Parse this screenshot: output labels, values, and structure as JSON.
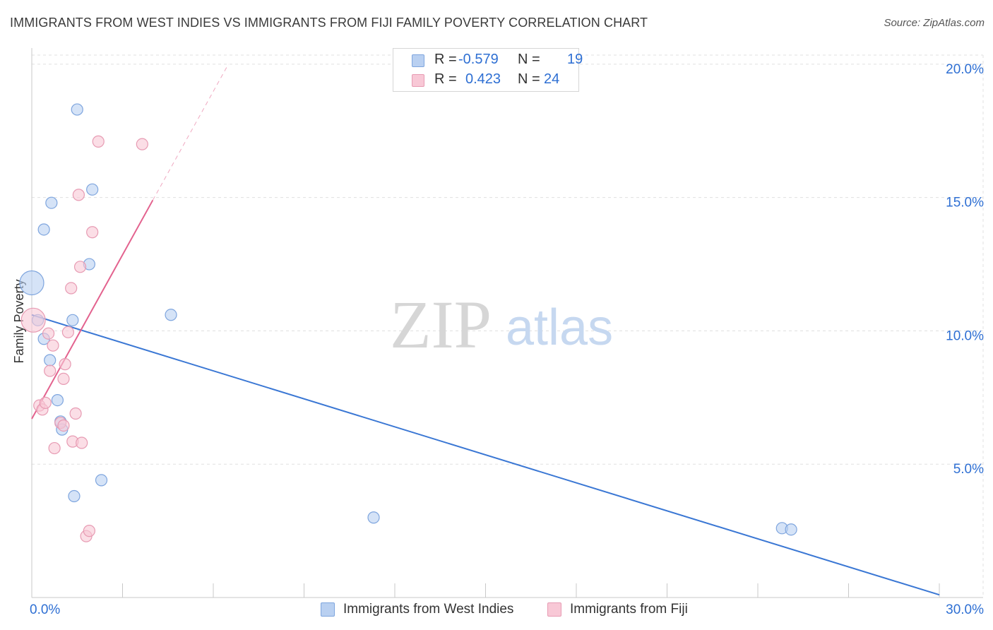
{
  "title": "IMMIGRANTS FROM WEST INDIES VS IMMIGRANTS FROM FIJI FAMILY POVERTY CORRELATION CHART",
  "source": "Source: ZipAtlas.com",
  "watermark": {
    "zip": "ZIP",
    "atlas": "atlas"
  },
  "stats": {
    "r_label": "R =",
    "n_label": "N =",
    "rows": [
      {
        "series": "Immigrants from West Indies",
        "r": "-0.579",
        "n": "19"
      },
      {
        "series": "Immigrants from Fiji",
        "r": "0.423",
        "n": "24"
      }
    ]
  },
  "legend": [
    {
      "label": "Immigrants from West Indies"
    },
    {
      "label": "Immigrants from Fiji"
    }
  ],
  "colors": {
    "blue_fill": "#b9d0f1",
    "blue_stroke": "#7ea5de",
    "blue_line": "#3a77d4",
    "pink_fill": "#f8c8d6",
    "pink_stroke": "#e79bb3",
    "pink_line": "#e3628e",
    "grid": "#e0e0e0",
    "axis_text": "#2e6fd3"
  },
  "chart_data": {
    "type": "scatter",
    "title": "IMMIGRANTS FROM WEST INDIES VS IMMIGRANTS FROM FIJI FAMILY POVERTY CORRELATION CHART",
    "xlabel": "",
    "ylabel": "Family Poverty",
    "xlim": [
      0,
      30
    ],
    "ylim": [
      0,
      20.5
    ],
    "x_tick_labels": [
      {
        "value": 0,
        "label": "0.0%"
      },
      {
        "value": 30,
        "label": "30.0%"
      }
    ],
    "y_tick_labels": [
      {
        "value": 5,
        "label": "5.0%"
      },
      {
        "value": 10,
        "label": "10.0%"
      },
      {
        "value": 15,
        "label": "15.0%"
      },
      {
        "value": 20,
        "label": "20.0%"
      }
    ],
    "x_minor_ticks": [
      3,
      6,
      9,
      12,
      15,
      18,
      21,
      24,
      27,
      30
    ],
    "series": [
      {
        "name": "Immigrants from West Indies",
        "color_key": "blue",
        "points": [
          {
            "x": 0.0,
            "y": 11.8,
            "size": 3
          },
          {
            "x": 0.2,
            "y": 10.4,
            "size": 1
          },
          {
            "x": 0.4,
            "y": 13.8,
            "size": 1
          },
          {
            "x": 0.4,
            "y": 9.7,
            "size": 1
          },
          {
            "x": 0.65,
            "y": 14.8,
            "size": 1
          },
          {
            "x": 0.6,
            "y": 8.9,
            "size": 1
          },
          {
            "x": 0.85,
            "y": 7.4,
            "size": 1
          },
          {
            "x": 0.95,
            "y": 6.6,
            "size": 1
          },
          {
            "x": 1.0,
            "y": 6.3,
            "size": 1
          },
          {
            "x": 1.35,
            "y": 10.4,
            "size": 1
          },
          {
            "x": 1.4,
            "y": 3.8,
            "size": 1
          },
          {
            "x": 1.5,
            "y": 18.3,
            "size": 1
          },
          {
            "x": 1.9,
            "y": 12.5,
            "size": 1
          },
          {
            "x": 2.0,
            "y": 15.3,
            "size": 1
          },
          {
            "x": 2.3,
            "y": 4.4,
            "size": 1
          },
          {
            "x": 4.6,
            "y": 10.6,
            "size": 1
          },
          {
            "x": 11.3,
            "y": 3.0,
            "size": 1
          },
          {
            "x": 24.8,
            "y": 2.6,
            "size": 1
          },
          {
            "x": 25.1,
            "y": 2.55,
            "size": 1
          }
        ],
        "trend": {
          "x0": 0,
          "y0": 10.6,
          "x1": 30,
          "y1": 0.1
        }
      },
      {
        "name": "Immigrants from Fiji",
        "color_key": "pink",
        "points": [
          {
            "x": 0.05,
            "y": 10.4,
            "size": 3
          },
          {
            "x": 0.25,
            "y": 7.2,
            "size": 1
          },
          {
            "x": 0.35,
            "y": 7.05,
            "size": 1
          },
          {
            "x": 0.45,
            "y": 7.3,
            "size": 1
          },
          {
            "x": 0.55,
            "y": 9.9,
            "size": 1
          },
          {
            "x": 0.6,
            "y": 8.5,
            "size": 1
          },
          {
            "x": 0.7,
            "y": 9.45,
            "size": 1
          },
          {
            "x": 0.75,
            "y": 5.6,
            "size": 1
          },
          {
            "x": 0.95,
            "y": 6.55,
            "size": 1
          },
          {
            "x": 1.05,
            "y": 8.2,
            "size": 1
          },
          {
            "x": 1.05,
            "y": 6.45,
            "size": 1
          },
          {
            "x": 1.1,
            "y": 8.75,
            "size": 1
          },
          {
            "x": 1.2,
            "y": 9.95,
            "size": 1
          },
          {
            "x": 1.3,
            "y": 11.6,
            "size": 1
          },
          {
            "x": 1.35,
            "y": 5.85,
            "size": 1
          },
          {
            "x": 1.45,
            "y": 6.9,
            "size": 1
          },
          {
            "x": 1.55,
            "y": 15.1,
            "size": 1
          },
          {
            "x": 1.6,
            "y": 12.4,
            "size": 1
          },
          {
            "x": 1.65,
            "y": 5.8,
            "size": 1
          },
          {
            "x": 1.8,
            "y": 2.3,
            "size": 1
          },
          {
            "x": 1.9,
            "y": 2.5,
            "size": 1
          },
          {
            "x": 2.0,
            "y": 13.7,
            "size": 1
          },
          {
            "x": 2.2,
            "y": 17.1,
            "size": 1
          },
          {
            "x": 3.65,
            "y": 17.0,
            "size": 1
          }
        ],
        "trend": {
          "x0": 0,
          "y0": 6.7,
          "x1": 4.0,
          "y1": 14.9
        },
        "trend_extension": {
          "x0": 4.0,
          "y0": 14.9,
          "x1": 6.5,
          "y1": 20.0
        }
      }
    ]
  }
}
